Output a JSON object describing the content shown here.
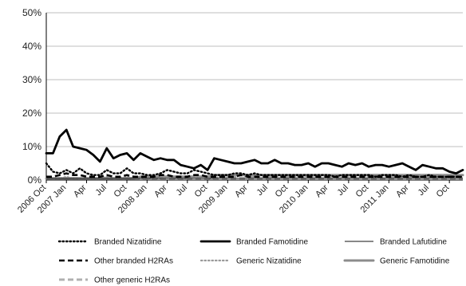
{
  "chart_data": {
    "type": "line",
    "title": "",
    "xlabel": "",
    "ylabel": "",
    "ylim": [
      0,
      50
    ],
    "y_ticks": [
      "0%",
      "10%",
      "20%",
      "30%",
      "40%",
      "50%"
    ],
    "y_tick_values": [
      0,
      10,
      20,
      30,
      40,
      50
    ],
    "grid": "horizontal",
    "legend_position": "bottom",
    "x": [
      "2006 Oct",
      "2006 Nov",
      "2006 Dec",
      "2007 Jan",
      "2007 Feb",
      "2007 Mar",
      "2007 Apr",
      "2007 May",
      "2007 Jun",
      "2007 Jul",
      "2007 Aug",
      "2007 Sep",
      "2007 Oct",
      "2007 Nov",
      "2007 Dec",
      "2008 Jan",
      "2008 Feb",
      "2008 Mar",
      "2008 Apr",
      "2008 May",
      "2008 Jun",
      "2008 Jul",
      "2008 Aug",
      "2008 Sep",
      "2008 Oct",
      "2008 Nov",
      "2008 Dec",
      "2009 Jan",
      "2009 Feb",
      "2009 Mar",
      "2009 Apr",
      "2009 May",
      "2009 Jun",
      "2009 Jul",
      "2009 Aug",
      "2009 Sep",
      "2009 Oct",
      "2009 Nov",
      "2009 Dec",
      "2010 Jan",
      "2010 Feb",
      "2010 Mar",
      "2010 Apr",
      "2010 May",
      "2010 Jun",
      "2010 Jul",
      "2010 Aug",
      "2010 Sep",
      "2010 Oct",
      "2010 Nov",
      "2010 Dec",
      "2011 Jan",
      "2011 Feb",
      "2011 Mar",
      "2011 Apr",
      "2011 May",
      "2011 Jun",
      "2011 Jul",
      "2011 Aug",
      "2011 Sep",
      "2011 Oct",
      "2011 Nov",
      "2011 Dec"
    ],
    "x_tick_labels": [
      "2006 Oct",
      "2007 Jan",
      "Apr",
      "Jul",
      "Oct",
      "2008 Jan",
      "Apr",
      "Jul",
      "Oct",
      "2009 Jan",
      "Apr",
      "Jul",
      "Oct",
      "2010 Jan",
      "Apr",
      "Jul",
      "Oct",
      "2011 Jan",
      "Apr",
      "Jul",
      "Oct"
    ],
    "series": [
      {
        "name": "Branded Nizatidine",
        "style": "dotted",
        "color": "#000000",
        "values": [
          5.0,
          2.5,
          2.0,
          3.0,
          2.0,
          3.5,
          2.0,
          1.5,
          1.5,
          3.0,
          2.0,
          2.0,
          3.5,
          2.0,
          2.0,
          1.5,
          1.5,
          2.0,
          3.0,
          2.5,
          2.0,
          2.0,
          3.0,
          2.5,
          2.0,
          1.5,
          1.5,
          1.5,
          2.0,
          2.0,
          1.5,
          2.0,
          1.5,
          1.5,
          1.5,
          1.5,
          1.5,
          1.5,
          1.5,
          1.5,
          1.5,
          1.5,
          1.5,
          1.0,
          1.5,
          1.5,
          1.5,
          1.5,
          1.5,
          1.0,
          1.5,
          1.5,
          1.5,
          1.0,
          1.5,
          1.0,
          1.0,
          1.5,
          1.0,
          1.0,
          1.0,
          1.0,
          1.0
        ]
      },
      {
        "name": "Branded Famotidine",
        "style": "solid-thick",
        "color": "#000000",
        "values": [
          8.0,
          8.0,
          13.0,
          15.0,
          10.0,
          9.5,
          9.0,
          7.5,
          5.5,
          9.5,
          6.5,
          7.5,
          8.0,
          6.0,
          8.0,
          7.0,
          6.0,
          6.5,
          6.0,
          6.0,
          4.5,
          4.0,
          3.5,
          4.5,
          3.0,
          6.5,
          6.0,
          5.5,
          5.0,
          5.0,
          5.5,
          6.0,
          5.0,
          5.0,
          6.0,
          5.0,
          5.0,
          4.5,
          4.5,
          5.0,
          4.0,
          5.0,
          5.0,
          4.5,
          4.0,
          5.0,
          4.5,
          5.0,
          4.0,
          4.5,
          4.5,
          4.0,
          4.5,
          5.0,
          4.0,
          3.0,
          4.5,
          4.0,
          3.5,
          3.5,
          2.5,
          2.0,
          3.0
        ]
      },
      {
        "name": "Branded Lafutidine",
        "style": "solid-thin",
        "color": "#111111",
        "values": [
          0.5,
          0.5,
          0.5,
          0.5,
          0.5,
          0.5,
          0.5,
          0.5,
          0.5,
          0.5,
          0.5,
          0.5,
          0.5,
          0.5,
          0.5,
          0.5,
          0.5,
          0.5,
          0.5,
          0.5,
          0.5,
          0.5,
          0.5,
          0.5,
          0.5,
          0.5,
          0.5,
          0.5,
          0.5,
          0.5,
          0.5,
          0.5,
          0.5,
          0.5,
          0.5,
          0.5,
          0.5,
          0.5,
          0.5,
          0.5,
          0.5,
          0.5,
          0.5,
          0.5,
          0.5,
          0.5,
          0.5,
          0.5,
          0.5,
          0.5,
          0.5,
          0.5,
          0.5,
          0.5,
          0.5,
          0.5,
          0.5,
          0.5,
          0.5,
          0.5,
          0.5,
          0.5,
          0.5
        ]
      },
      {
        "name": "Other branded H2RAs",
        "style": "dashed-thick",
        "color": "#000000",
        "values": [
          1.0,
          1.0,
          1.5,
          2.0,
          1.5,
          1.5,
          1.0,
          1.0,
          1.0,
          1.5,
          1.0,
          1.0,
          1.5,
          1.0,
          1.0,
          1.0,
          1.0,
          1.5,
          1.5,
          1.0,
          1.0,
          1.0,
          1.5,
          1.5,
          1.0,
          1.0,
          1.0,
          1.0,
          1.0,
          1.5,
          1.0,
          1.0,
          1.0,
          1.0,
          1.0,
          1.0,
          1.0,
          1.0,
          1.0,
          1.0,
          1.0,
          1.0,
          1.0,
          1.0,
          1.0,
          1.0,
          1.0,
          1.0,
          1.0,
          1.0,
          1.0,
          1.0,
          1.0,
          1.0,
          1.0,
          1.0,
          1.0,
          1.0,
          1.0,
          1.0,
          1.0,
          1.0,
          1.0
        ]
      },
      {
        "name": "Generic Nizatidine",
        "style": "dotted-gray",
        "color": "#9a9a9a",
        "values": [
          0.5,
          0.5,
          0.5,
          1.0,
          0.5,
          0.5,
          0.5,
          0.5,
          0.5,
          1.0,
          0.5,
          0.5,
          1.0,
          0.5,
          0.5,
          0.5,
          0.5,
          0.5,
          1.0,
          0.5,
          0.5,
          0.5,
          1.0,
          1.0,
          0.5,
          0.5,
          1.0,
          1.0,
          1.0,
          1.5,
          1.0,
          1.0,
          1.5,
          1.0,
          1.0,
          1.5,
          1.0,
          1.0,
          1.5,
          1.0,
          1.0,
          1.5,
          1.0,
          1.0,
          1.5,
          1.0,
          1.5,
          1.5,
          1.0,
          1.0,
          1.5,
          1.0,
          1.0,
          1.5,
          1.0,
          1.0,
          1.5,
          1.0,
          1.0,
          1.5,
          1.0,
          1.0,
          1.5
        ]
      },
      {
        "name": "Generic Famotidine",
        "style": "solid-gray-thick",
        "color": "#8c8c8c",
        "values": [
          0.5,
          0.5,
          0.5,
          0.5,
          0.5,
          0.5,
          0.5,
          0.5,
          0.5,
          0.5,
          0.5,
          0.5,
          0.5,
          0.5,
          1.0,
          1.0,
          1.0,
          1.0,
          1.0,
          1.0,
          1.0,
          1.0,
          1.0,
          1.0,
          1.0,
          1.5,
          1.5,
          1.5,
          1.5,
          1.5,
          1.5,
          1.5,
          1.5,
          1.5,
          1.5,
          1.5,
          1.5,
          1.5,
          1.5,
          1.5,
          1.5,
          1.5,
          1.5,
          1.5,
          1.5,
          1.5,
          1.5,
          1.5,
          1.5,
          1.5,
          1.5,
          1.5,
          1.5,
          1.5,
          1.5,
          1.5,
          1.5,
          1.5,
          1.5,
          1.5,
          1.5,
          1.5,
          1.5
        ]
      },
      {
        "name": "Other generic H2RAs",
        "style": "dashed-gray-thick",
        "color": "#b0b0b0",
        "values": [
          0.5,
          0.5,
          0.5,
          0.5,
          0.5,
          0.5,
          0.5,
          0.5,
          0.5,
          0.5,
          0.5,
          0.5,
          0.5,
          0.5,
          0.5,
          0.5,
          0.5,
          0.5,
          0.5,
          0.5,
          0.5,
          0.5,
          0.5,
          0.5,
          0.5,
          0.5,
          0.5,
          0.5,
          0.5,
          0.5,
          0.5,
          0.5,
          0.5,
          0.5,
          0.5,
          0.5,
          0.5,
          0.5,
          0.5,
          0.5,
          0.5,
          0.5,
          0.5,
          0.5,
          0.5,
          0.5,
          0.5,
          0.5,
          0.5,
          0.5,
          0.5,
          0.5,
          0.5,
          0.5,
          0.5,
          0.5,
          0.5,
          0.5,
          0.5,
          0.5,
          0.5,
          0.5,
          0.5
        ]
      }
    ]
  }
}
